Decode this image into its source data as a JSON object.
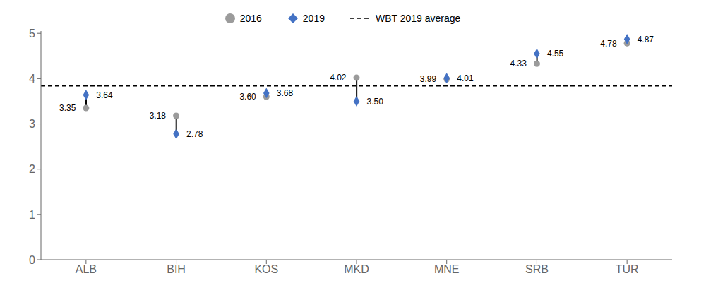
{
  "chart_data": {
    "type": "scatter",
    "categories": [
      "ALB",
      "BIH",
      "KOS",
      "MKD",
      "MNE",
      "SRB",
      "TUR"
    ],
    "series": [
      {
        "name": "2016",
        "color": "#9b9b9b",
        "marker": "circle",
        "values": [
          3.35,
          3.18,
          3.6,
          4.02,
          3.99,
          4.33,
          4.78
        ],
        "value_labels": [
          "3.35",
          "3.18",
          "3.60",
          "4.02",
          "3.99",
          "4.33",
          "4.78"
        ]
      },
      {
        "name": "2019",
        "color": "#4472c4",
        "marker": "diamond",
        "values": [
          3.64,
          2.78,
          3.68,
          3.5,
          4.01,
          4.55,
          4.87
        ],
        "value_labels": [
          "3.64",
          "2.78",
          "3.68",
          "3.50",
          "4.01",
          "4.55",
          "4.87"
        ]
      }
    ],
    "reference_lines": [
      {
        "name": "WBT 2019 average",
        "value": 3.84,
        "color": "#000000",
        "line_style": "dashed"
      }
    ],
    "ylim": [
      0,
      5.05
    ],
    "yticks": [
      0,
      1,
      2,
      3,
      4,
      5
    ],
    "data_labels": true,
    "grid": false,
    "legend": "top"
  }
}
